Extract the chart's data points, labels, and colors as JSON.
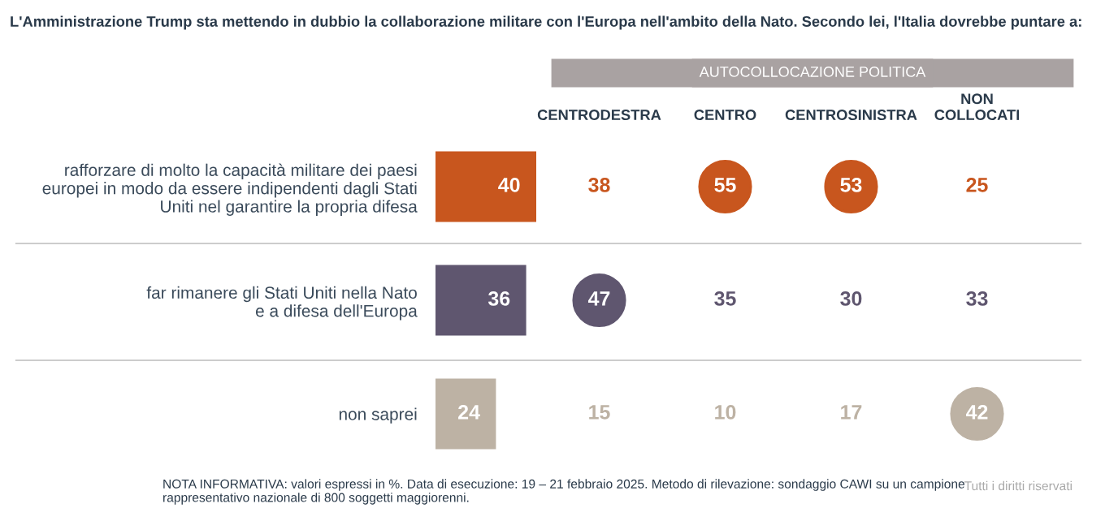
{
  "chart_data": [
    {
      "type": "bar",
      "orientation": "horizontal",
      "title": "L'Amministrazione Trump sta mettendo in dubbio la collaborazione militare con l'Europa nell'ambito della Nato. Secondo lei, l'Italia dovrebbe puntare a:",
      "categories": [
        "rafforzare di molto la capacità militare dei paesi\neuropei in modo da essere indipendenti dagli Stati\nUniti nel garantire la propria difesa",
        "far rimanere gli Stati Uniti nella Nato\ne a difesa dell'Europa",
        "non saprei"
      ],
      "values": [
        40,
        36,
        24
      ],
      "colors": [
        "#c8561e",
        "#5f566f",
        "#bdb2a4"
      ],
      "xlim": [
        0,
        40
      ],
      "tick_labels": "y",
      "data_labels": true,
      "grid": false,
      "legend": false,
      "annotations": [
        "NOTA INFORMATIVA: valori espressi in %. Data di esecuzione: 19 – 21 febbraio 2025. Metodo di rilevazione: sondaggio CAWI su un campione\nrappresentativo nazionale di 800 soggetti maggiorenni.",
        "Tutti i diritti riservati"
      ]
    },
    {
      "type": "other",
      "title": "AUTOCOLLOCAZIONE POLITICA",
      "categories": [
        "CENTRODESTRA",
        "CENTRO",
        "CENTROSINISTRA",
        "NON\nCOLLOCATI"
      ],
      "series": [
        {
          "color": "#c8561e",
          "values": [
            38,
            55,
            53,
            25
          ],
          "colors": [
            null,
            "#c8561e",
            "#c8561e",
            null
          ]
        },
        {
          "color": "#5f566f",
          "values": [
            47,
            35,
            30,
            33
          ],
          "colors": [
            "#5f566f",
            null,
            null,
            null
          ]
        },
        {
          "color": "#bdb2a4",
          "values": [
            15,
            10,
            17,
            42
          ],
          "colors": [
            null,
            null,
            null,
            "#bdb2a4"
          ]
        }
      ],
      "data_labels": true
    }
  ]
}
